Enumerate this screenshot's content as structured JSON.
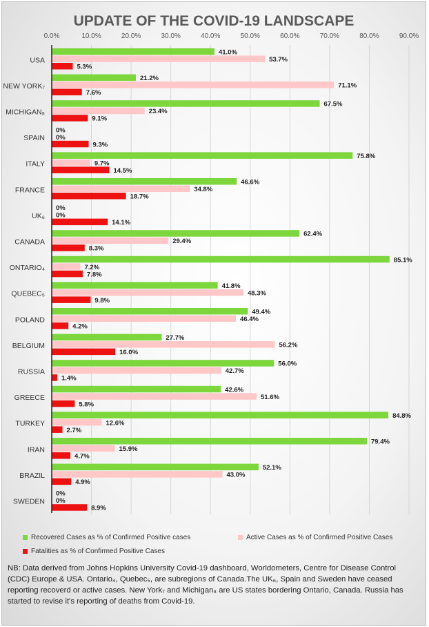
{
  "chart_data": {
    "type": "bar",
    "orientation": "horizontal",
    "title": "UPDATE OF THE COVID-19 LANDSCAPE",
    "xlim": [
      0,
      90
    ],
    "x_ticks": [
      "0.0%",
      "10.0%",
      "20.0%",
      "30.0%",
      "40.0%",
      "50.0%",
      "60.0%",
      "70.0%",
      "80.0%",
      "90.0%"
    ],
    "categories": [
      "USA",
      "NEW YORK₇",
      "MICHIGAN₈",
      "SPAIN",
      "ITALY",
      "FRANCE",
      "UK₆",
      "CANADA",
      "ONTARIO₄",
      "QUEBEC₅",
      "POLAND",
      "BELGIUM",
      "RUSSIA",
      "GREECE",
      "TURKEY",
      "IRAN",
      "BRAZIL",
      "SWEDEN"
    ],
    "series": [
      {
        "name": "Recovered Cases as % of Confirmed Positive cases",
        "color": "#7dd63c",
        "values": [
          41.0,
          21.2,
          67.5,
          0,
          75.8,
          46.6,
          0,
          62.4,
          85.1,
          41.8,
          49.4,
          27.7,
          56.0,
          42.6,
          84.8,
          79.4,
          52.1,
          0
        ],
        "labels": [
          "41.0%",
          "21.2%",
          "67.5%",
          "0%",
          "75.8%",
          "46.6%",
          "0%",
          "62.4%",
          "85.1%",
          "41.8%",
          "49.4%",
          "27.7%",
          "56.0%",
          "42.6%",
          "84.8%",
          "79.4%",
          "52.1%",
          "0%"
        ]
      },
      {
        "name": "Active Cases as % of Confirmed Positive  Cases",
        "color": "#ffc7c7",
        "values": [
          53.7,
          71.1,
          23.4,
          0,
          9.7,
          34.8,
          0,
          29.4,
          7.2,
          48.3,
          46.4,
          56.2,
          42.7,
          51.6,
          12.6,
          15.9,
          43.0,
          0
        ],
        "labels": [
          "53.7%",
          "71.1%",
          "23.4%",
          "0%",
          "9.7%",
          "34.8%",
          "0%",
          "29.4%",
          "7.2%",
          "48.3%",
          "46.4%",
          "56.2%",
          "42.7%",
          "51.6%",
          "12.6%",
          "15.9%",
          "43.0%",
          "0%"
        ]
      },
      {
        "name": "Fatalities as % of Confirmed Positive Cases",
        "color": "#ee1111",
        "values": [
          5.3,
          7.6,
          9.1,
          9.3,
          14.5,
          18.7,
          14.1,
          8.3,
          7.8,
          9.8,
          4.2,
          16.0,
          1.4,
          5.8,
          2.7,
          4.7,
          4.9,
          8.9
        ],
        "labels": [
          "5.3%",
          "7.6%",
          "9.1%",
          "9.3%",
          "14.5%",
          "18.7%",
          "14.1%",
          "8.3%",
          "7.8%",
          "9.8%",
          "4.2%",
          "16.0%",
          "1.4%",
          "5.8%",
          "2.7%",
          "4.7%",
          "4.9%",
          "8.9%"
        ]
      }
    ],
    "grid": true,
    "legend_position": "bottom"
  },
  "note": {
    "text": "NB: Data derived from Johns Hopkins University Covid-19 dashboard, Worldometers, Centre for Disease Control (CDC) Europe & USA. Ontario₄, Quebec₅, are subregions of Canada.The UK₆, Spain and Sweden have ceased reporting recoverd or active cases. New York₇ and Michigan₈ are US states bordering Ontario, Canada. Russia has started to revise it's reporting of deaths from Covid-19."
  }
}
